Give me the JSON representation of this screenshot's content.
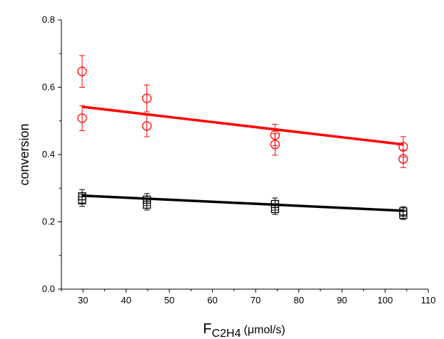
{
  "chart_data": {
    "type": "scatter",
    "title": "",
    "xlabel": "F",
    "xlabel_sub": "C2H4",
    "xlabel_unit": "(μmol/s)",
    "ylabel": "conversion",
    "xlim": [
      25,
      110
    ],
    "ylim": [
      0,
      0.8
    ],
    "xticks": [
      30,
      40,
      50,
      60,
      70,
      80,
      90,
      100,
      110
    ],
    "yticks": [
      0.0,
      0.2,
      0.4,
      0.6,
      0.8
    ],
    "ytick_labels": [
      "0.0",
      "0.2",
      "0.4",
      "0.6",
      "0.8"
    ],
    "grid": false,
    "legend": "none",
    "series": [
      {
        "marker": "circle",
        "color": "#ff0000",
        "points": [
          {
            "x": 29.8,
            "y": 0.647,
            "err": 0.047
          },
          {
            "x": 29.8,
            "y": 0.508,
            "err": 0.037
          },
          {
            "x": 44.8,
            "y": 0.567,
            "err": 0.04
          },
          {
            "x": 44.8,
            "y": 0.485,
            "err": 0.032
          },
          {
            "x": 74.5,
            "y": 0.458,
            "err": 0.032
          },
          {
            "x": 74.5,
            "y": 0.43,
            "err": 0.032
          },
          {
            "x": 104.2,
            "y": 0.423,
            "err": 0.03
          },
          {
            "x": 104.2,
            "y": 0.387,
            "err": 0.026
          }
        ],
        "fit": {
          "x": [
            29.8,
            104.2
          ],
          "y": [
            0.542,
            0.43
          ]
        }
      },
      {
        "marker": "square",
        "color": "#000000",
        "points": [
          {
            "x": 29.8,
            "y": 0.276,
            "err": 0.02
          },
          {
            "x": 29.8,
            "y": 0.264,
            "err": 0.018
          },
          {
            "x": 44.8,
            "y": 0.266,
            "err": 0.018
          },
          {
            "x": 44.8,
            "y": 0.251,
            "err": 0.016
          },
          {
            "x": 74.5,
            "y": 0.253,
            "err": 0.018
          },
          {
            "x": 74.5,
            "y": 0.238,
            "err": 0.016
          },
          {
            "x": 104.2,
            "y": 0.231,
            "err": 0.014
          },
          {
            "x": 104.2,
            "y": 0.221,
            "err": 0.014
          }
        ],
        "fit": {
          "x": [
            29.8,
            104.2
          ],
          "y": [
            0.278,
            0.233
          ]
        }
      }
    ]
  }
}
